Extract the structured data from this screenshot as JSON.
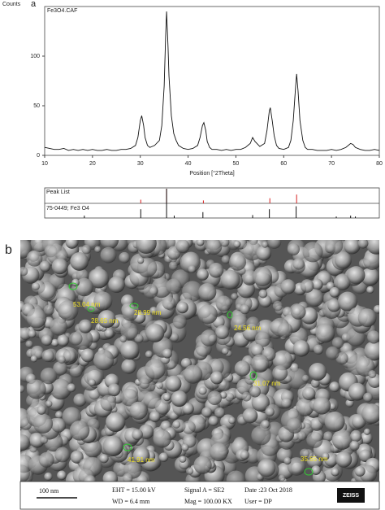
{
  "panel_labels": [
    "a",
    "b"
  ],
  "chart_data": {
    "type": "line",
    "title": "Fe3O4.CAF",
    "ylabel": "Counts",
    "xlabel": "Position [°2Theta]",
    "color": "#111111",
    "x": [
      10,
      11,
      12,
      13,
      14,
      15,
      16,
      17,
      18,
      19,
      20,
      21,
      22,
      23,
      24,
      25,
      26,
      27,
      28,
      29,
      29.5,
      30,
      30.3,
      30.7,
      31,
      31.5,
      32,
      33,
      34,
      34.5,
      35,
      35.3,
      35.5,
      35.8,
      36,
      36.5,
      37,
      37.5,
      38,
      39,
      40,
      41,
      42,
      42.5,
      43,
      43.3,
      43.7,
      44,
      44.5,
      45,
      46,
      47,
      48,
      49,
      50,
      51,
      52,
      53,
      53.5,
      54,
      55,
      56,
      56.5,
      57,
      57.2,
      57.6,
      58,
      58.5,
      59,
      60,
      61,
      61.5,
      62,
      62.5,
      62.7,
      63,
      63.4,
      64,
      64.5,
      65,
      66,
      67,
      68,
      69,
      70,
      71,
      72,
      73,
      74,
      74.5,
      75,
      76,
      77,
      78,
      79,
      80
    ],
    "values": [
      8,
      7,
      6,
      6,
      7,
      5,
      6,
      5,
      6,
      5,
      6,
      5,
      5,
      6,
      5,
      5,
      6,
      6,
      7,
      10,
      18,
      35,
      40,
      30,
      18,
      10,
      8,
      10,
      15,
      30,
      70,
      120,
      145,
      110,
      80,
      40,
      22,
      15,
      10,
      7,
      6,
      7,
      10,
      18,
      30,
      33,
      25,
      14,
      8,
      6,
      6,
      5,
      6,
      5,
      6,
      6,
      8,
      12,
      18,
      14,
      9,
      12,
      25,
      45,
      48,
      35,
      20,
      10,
      7,
      6,
      8,
      15,
      35,
      70,
      82,
      65,
      35,
      15,
      8,
      6,
      6,
      5,
      5,
      5,
      6,
      5,
      6,
      8,
      12,
      11,
      8,
      6,
      5,
      5,
      6,
      5
    ],
    "xlim": [
      10,
      80
    ],
    "ylim": [
      0,
      150
    ],
    "xticks": [
      10,
      20,
      30,
      40,
      50,
      60,
      70,
      80
    ],
    "yticks": [
      0,
      50,
      100
    ],
    "peak_list": {
      "label": "Peak List",
      "color": "#d62020",
      "positions": [
        30.1,
        35.5,
        43.2,
        57.1,
        62.7
      ],
      "intensities": [
        25,
        100,
        20,
        35,
        60
      ]
    },
    "reference": {
      "label": "75-0449; Fe3 O4",
      "color": "#111111",
      "positions": [
        18.3,
        30.1,
        35.5,
        37.1,
        43.1,
        53.5,
        57.0,
        62.6,
        71.0,
        74.0,
        75.0
      ],
      "intensities": [
        8,
        30,
        100,
        8,
        20,
        10,
        30,
        40,
        5,
        8,
        5
      ]
    }
  },
  "sem": {
    "measurements": [
      "53.04 nm",
      "28.65 nm",
      "28.99 nm",
      "24.56 nm",
      "31.07 nm",
      "41.91 nm",
      "35.65 nm"
    ],
    "info": {
      "scale_bar": "100 nm",
      "eht": "EHT = 15.00 kV",
      "signal": "Signal A = SE2",
      "date": "Date :23 Oct 2018",
      "wd": "WD = 6.4 mm",
      "mag": "Mag = 100.00 KX",
      "user": "User = DP",
      "brand": "ZEISS"
    }
  }
}
